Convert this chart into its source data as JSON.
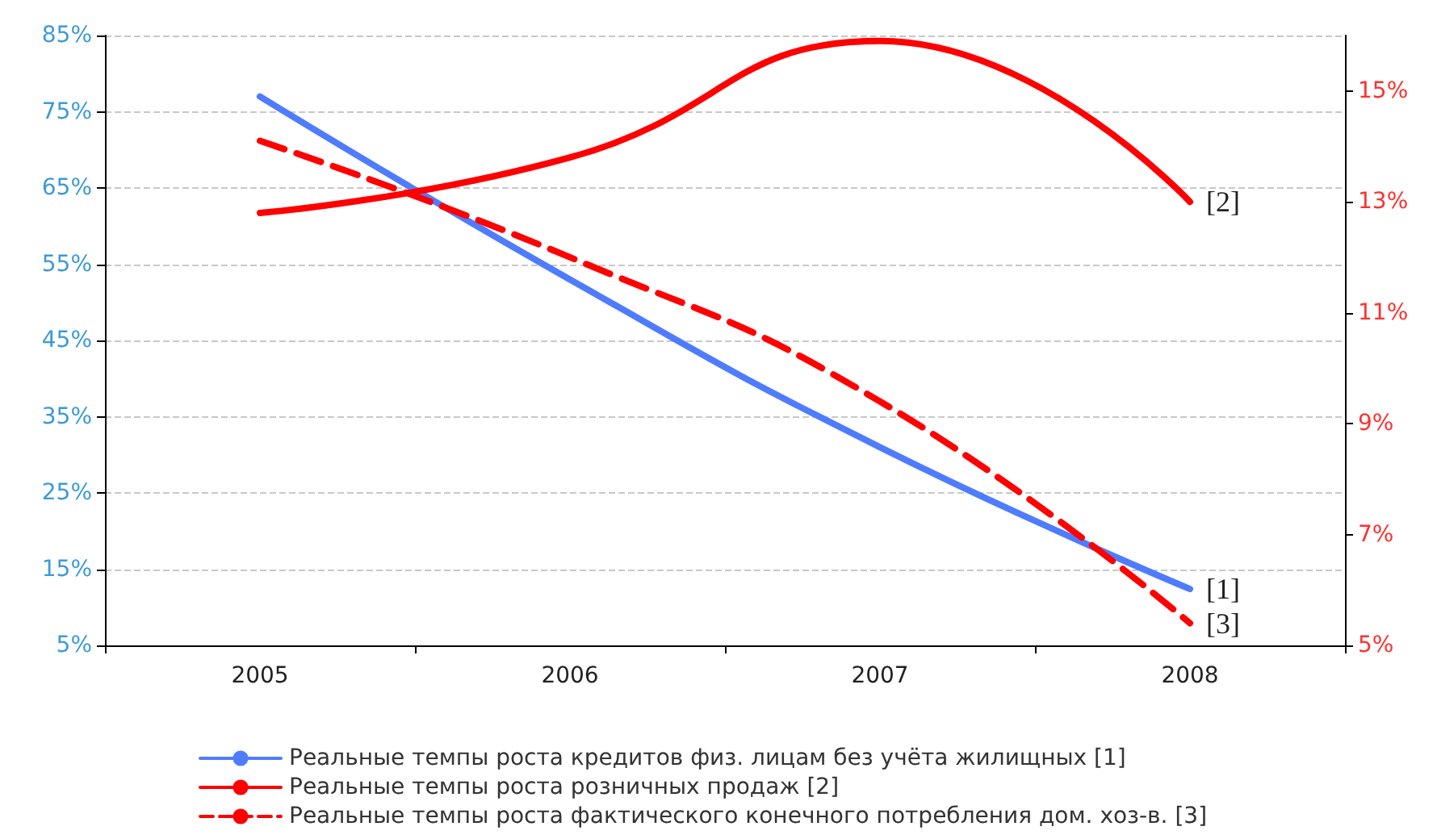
{
  "chart_data": {
    "type": "line",
    "categories": [
      "2005",
      "2006",
      "2007",
      "2008"
    ],
    "series": [
      {
        "name": "Реальные темпы роста кредитов физ. лицам без учёта жилищных [1]",
        "color": "#4f7cff",
        "values": [
          77,
          53,
          31,
          12.4
        ],
        "line_style": "solid"
      },
      {
        "name": "Реальные темпы роста розничных продаж [2]",
        "color": "#ff0000",
        "values": [
          12.8,
          13.8,
          15.9,
          13.0
        ],
        "axis": "y2",
        "line_style": "solid"
      },
      {
        "name": "Реальные темпы роста фактического конечного потребления дом. хоз-в. [3]",
        "color": "#ff0000",
        "values": [
          14.1,
          12.0,
          9.4,
          5.4
        ],
        "axis": "y2",
        "line_style": "dashed"
      }
    ],
    "annotations": [
      "[1]",
      "[2]",
      "[3]"
    ],
    "ylim": [
      5,
      85
    ],
    "yticks": [
      {
        "value": 5,
        "label": "5%"
      },
      {
        "value": 15,
        "label": "15%"
      },
      {
        "value": 25,
        "label": "25%"
      },
      {
        "value": 35,
        "label": "35%"
      },
      {
        "value": 45,
        "label": "45%"
      },
      {
        "value": 55,
        "label": "55%"
      },
      {
        "value": 65,
        "label": "65%"
      },
      {
        "value": 75,
        "label": "75%"
      },
      {
        "value": 85,
        "label": "85%"
      }
    ],
    "y2lim": [
      5,
      16
    ],
    "y2ticks": [
      {
        "value": 5,
        "label": "5%"
      },
      {
        "value": 7,
        "label": "7%"
      },
      {
        "value": 9,
        "label": "9%"
      },
      {
        "value": 11,
        "label": "11%"
      },
      {
        "value": 13,
        "label": "13%"
      },
      {
        "value": 15,
        "label": "15%"
      }
    ],
    "grid": "y",
    "legend": "bottom",
    "marker": "none"
  }
}
